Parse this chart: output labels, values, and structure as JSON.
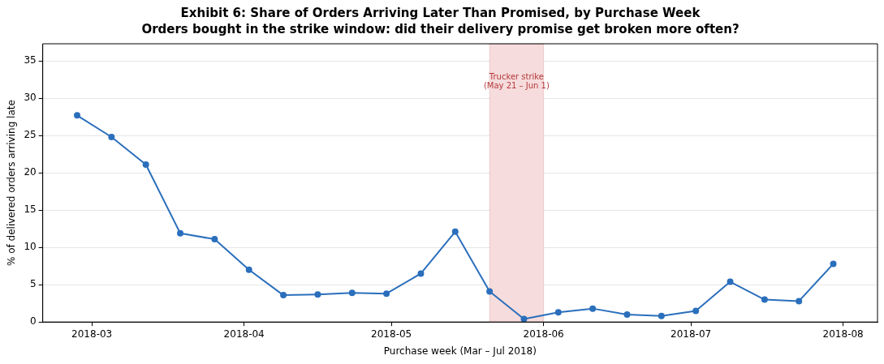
{
  "chart_data": {
    "type": "line",
    "title": "Exhibit 6: Share of Orders Arriving Later Than Promised, by Purchase Week",
    "subtitle": "Orders bought in the strike window: did their delivery promise get broken more often?",
    "xlabel": "Purchase week (Mar – Jul 2018)",
    "ylabel": "% of delivered orders arriving late",
    "x": [
      "2018-02-26",
      "2018-03-05",
      "2018-03-12",
      "2018-03-19",
      "2018-03-26",
      "2018-04-02",
      "2018-04-09",
      "2018-04-16",
      "2018-04-23",
      "2018-04-30",
      "2018-05-07",
      "2018-05-14",
      "2018-05-21",
      "2018-05-28",
      "2018-06-04",
      "2018-06-11",
      "2018-06-18",
      "2018-06-25",
      "2018-07-02",
      "2018-07-09",
      "2018-07-16",
      "2018-07-23",
      "2018-07-30"
    ],
    "series": [
      {
        "color": "#2b6fbc",
        "values": [
          27.7,
          24.8,
          21.1,
          11.9,
          11.1,
          7.0,
          3.6,
          3.7,
          3.9,
          3.8,
          6.5,
          12.1,
          4.1,
          0.4,
          1.3,
          1.8,
          1.0,
          0.8,
          1.5,
          5.4,
          3.0,
          2.8,
          7.8
        ]
      }
    ],
    "xlim": [
      "2018-02-19",
      "2018-08-08"
    ],
    "xticks": [
      {
        "value": "2018-03-01",
        "label": "2018-03"
      },
      {
        "value": "2018-04-01",
        "label": "2018-04"
      },
      {
        "value": "2018-05-01",
        "label": "2018-05"
      },
      {
        "value": "2018-06-01",
        "label": "2018-06"
      },
      {
        "value": "2018-07-01",
        "label": "2018-07"
      },
      {
        "value": "2018-08-01",
        "label": "2018-08"
      }
    ],
    "ylim": [
      0,
      37.3
    ],
    "yticks": [
      0,
      5,
      10,
      15,
      20,
      25,
      30,
      35
    ],
    "bands": [
      {
        "axis": "x",
        "from": "2018-05-21",
        "to": "2018-06-01",
        "label": "Trucker strike\n(May 21 – Jun 1)",
        "color": "#f6dcdc"
      }
    ],
    "grid": "y",
    "legend": false,
    "marker": "circle",
    "line_style": "solid"
  }
}
